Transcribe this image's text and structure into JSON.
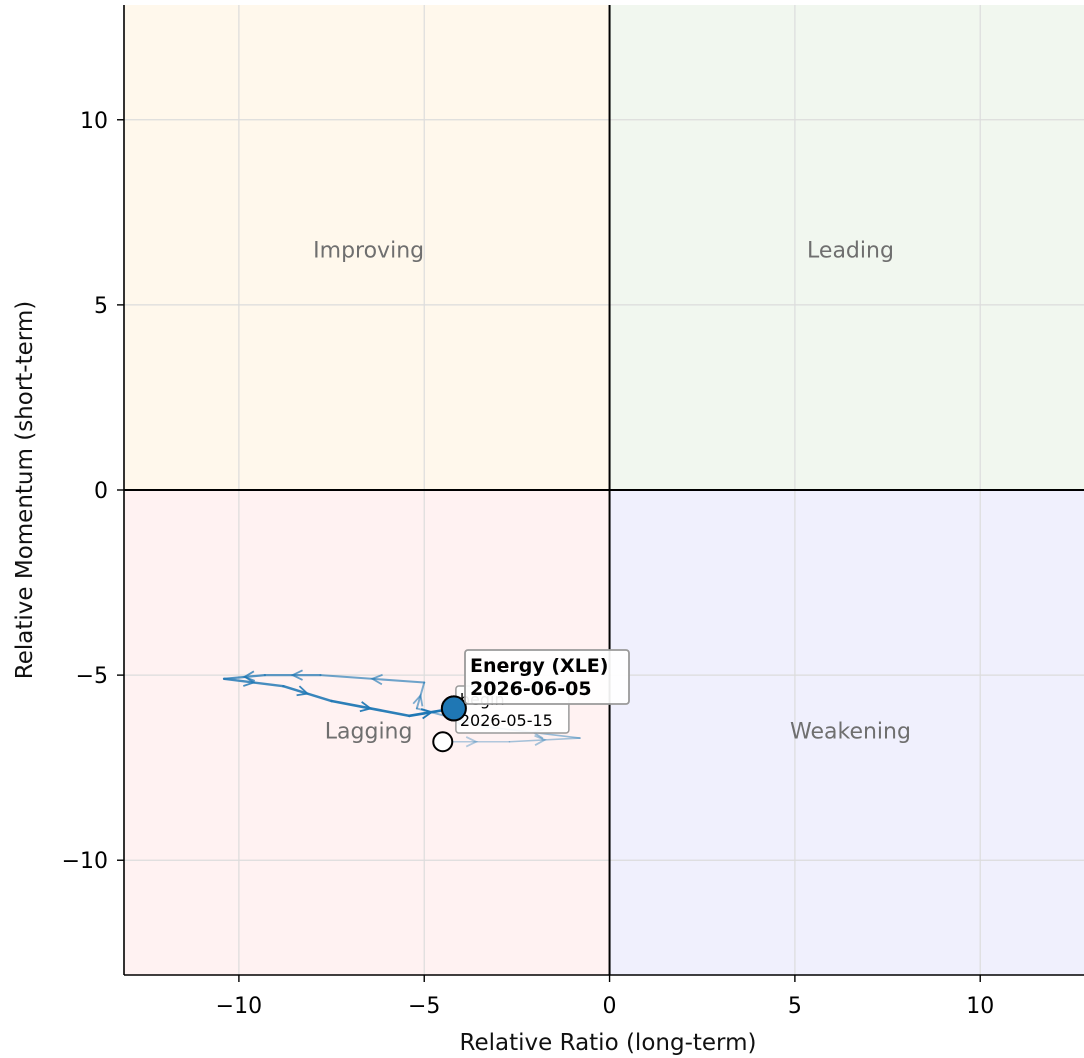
{
  "chart_data": {
    "type": "scatter",
    "subtype": "relative-rotation-graph",
    "xlabel": "Relative Ratio (long-term)",
    "ylabel": "Relative Momentum (short-term)",
    "xlim": [
      -13.1,
      12.8
    ],
    "ylim": [
      -13.1,
      13.1
    ],
    "x_ticks": [
      -10,
      -5,
      0,
      5,
      10
    ],
    "y_ticks": [
      -10,
      -5,
      0,
      5,
      10
    ],
    "x_tick_labels": [
      "−10",
      "−5",
      "0",
      "5",
      "10"
    ],
    "y_tick_labels": [
      "−10",
      "−5",
      "0",
      "5",
      "10"
    ],
    "grid": true,
    "quadrants": [
      {
        "name": "Improving",
        "x": -6.5,
        "y": 6.5,
        "color": "#fff8ec"
      },
      {
        "name": "Leading",
        "x": 6.5,
        "y": 6.5,
        "color": "#f1f7ef"
      },
      {
        "name": "Lagging",
        "x": -6.5,
        "y": -6.5,
        "color": "#fff2f2"
      },
      {
        "name": "Weakening",
        "x": 6.5,
        "y": -6.5,
        "color": "#f0f0fd"
      }
    ],
    "series": [
      {
        "name": "Energy (XLE)",
        "color": "#1f77b4",
        "points": [
          {
            "x": -4.5,
            "y": -6.8
          },
          {
            "x": -2.7,
            "y": -6.8
          },
          {
            "x": -0.8,
            "y": -6.7
          },
          {
            "x": -3.3,
            "y": -6.4
          },
          {
            "x": -5.2,
            "y": -5.9
          },
          {
            "x": -5.0,
            "y": -5.2
          },
          {
            "x": -7.8,
            "y": -5.0
          },
          {
            "x": -9.3,
            "y": -5.0
          },
          {
            "x": -10.4,
            "y": -5.1
          },
          {
            "x": -8.8,
            "y": -5.3
          },
          {
            "x": -7.5,
            "y": -5.7
          },
          {
            "x": -5.4,
            "y": -6.1
          },
          {
            "x": -4.2,
            "y": -5.9
          }
        ],
        "start_label": "begin",
        "start_date": "2026-05-15",
        "end_label": "Energy (XLE)",
        "end_date": "2026-06-05"
      }
    ]
  }
}
